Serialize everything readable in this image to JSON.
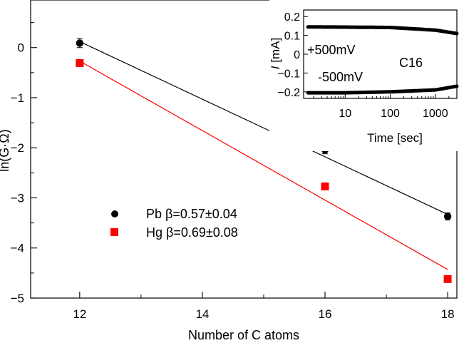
{
  "chart_data": [
    {
      "type": "scatter",
      "xlabel": "Number of C atoms",
      "ylabel": "ln(G·Ω)",
      "xlim": [
        11.2,
        18.15
      ],
      "ylim": [
        -5.0,
        0.95
      ],
      "x_ticks": [
        12,
        14,
        16,
        18
      ],
      "x_tick_labels": [
        "12",
        "14",
        "16",
        "18"
      ],
      "y_ticks": [
        0,
        -1,
        -2,
        -3,
        -4,
        -5
      ],
      "y_tick_labels": [
        "0",
        "−1",
        "−2",
        "−3",
        "−4",
        "−5"
      ],
      "legend_position": "lower-left",
      "series": [
        {
          "name": "Pb β=0.57±0.04",
          "marker": "circle",
          "color": "#000000",
          "x": [
            12,
            16,
            18
          ],
          "y": [
            0.09,
            -2.04,
            -3.37
          ],
          "yerr": [
            0.09,
            0.08,
            0.07
          ],
          "fit": {
            "x": [
              12,
              18
            ],
            "y": [
              0.12,
              -3.33
            ]
          }
        },
        {
          "name": "Hg β=0.69±0.08",
          "marker": "square",
          "color": "#ff0000",
          "x": [
            12,
            16,
            18
          ],
          "y": [
            -0.31,
            -2.77,
            -4.62
          ],
          "yerr": [
            0.05,
            0.05,
            0.05
          ],
          "fit": {
            "x": [
              12,
              18
            ],
            "y": [
              -0.27,
              -4.43
            ]
          }
        }
      ]
    },
    {
      "type": "scatter",
      "inset": true,
      "xlabel": "Time [sec]",
      "ylabel_italic": "I",
      "ylabel_rest": " [mA]",
      "x_scale": "log",
      "xlim": [
        1.2,
        3000
      ],
      "ylim": [
        -0.235,
        0.235
      ],
      "x_ticks": [
        10,
        100,
        1000
      ],
      "x_tick_labels": [
        "10",
        "100",
        "1000"
      ],
      "y_ticks": [
        0.2,
        0.1,
        0,
        -0.1,
        -0.2
      ],
      "y_tick_labels": [
        "0.2",
        "0.1",
        "0",
        "−0.1",
        "−0.2"
      ],
      "annotations": [
        "+500mV",
        "C16",
        "-500mV"
      ],
      "series": [
        {
          "label": "+500mV",
          "color": "#000000",
          "x": [
            1.5,
            10,
            100,
            1000,
            3000
          ],
          "y": [
            0.145,
            0.144,
            0.142,
            0.128,
            0.11
          ]
        },
        {
          "label": "-500mV",
          "color": "#000000",
          "x": [
            1.5,
            10,
            100,
            1000,
            3000
          ],
          "y": [
            -0.205,
            -0.205,
            -0.2,
            -0.19,
            -0.17
          ]
        }
      ]
    }
  ]
}
